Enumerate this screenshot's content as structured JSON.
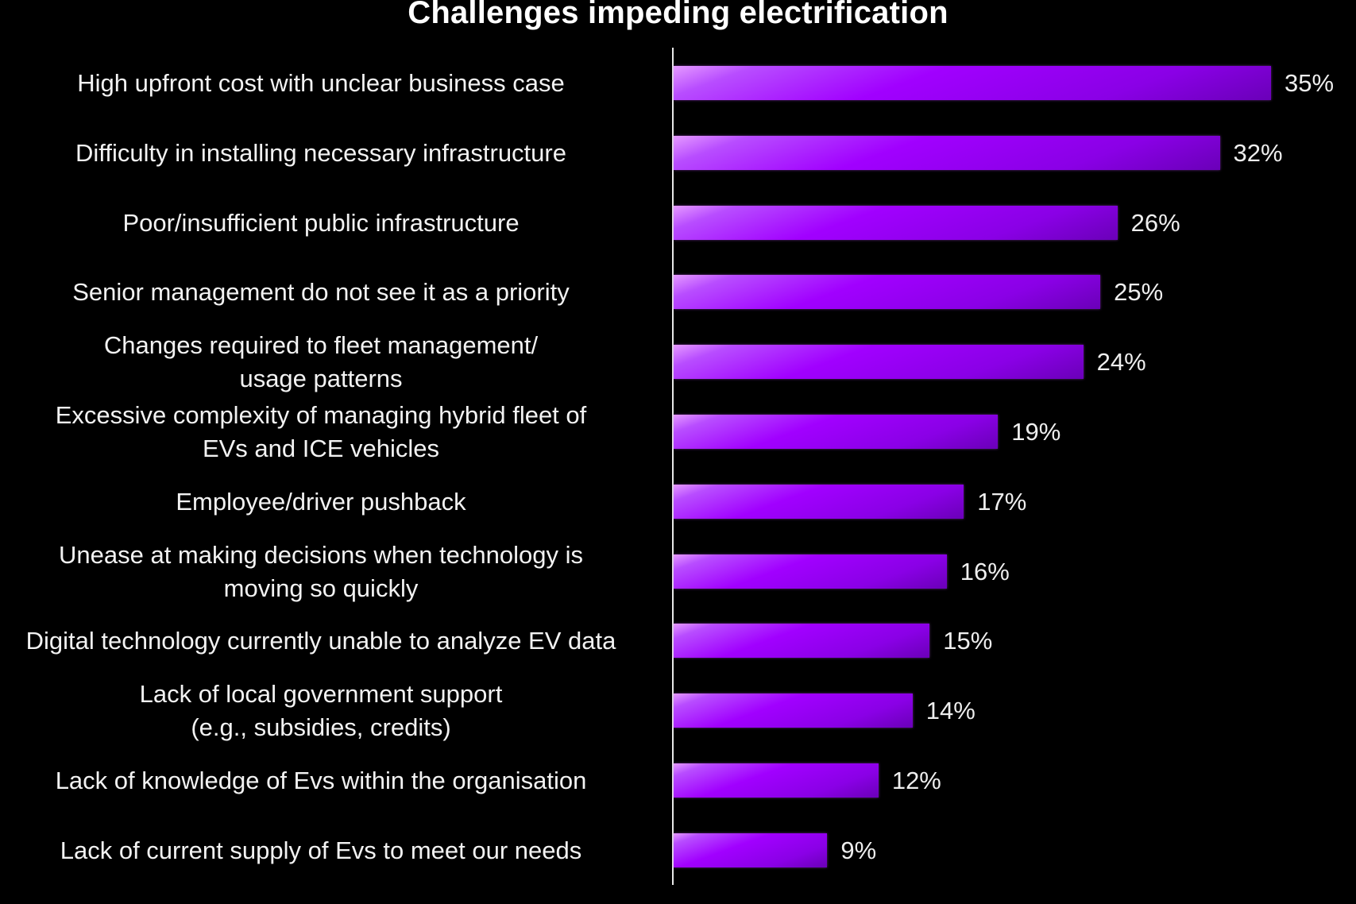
{
  "chart_data": {
    "type": "bar",
    "orientation": "horizontal",
    "title": "Challenges impeding electrification",
    "xlabel": "",
    "ylabel": "",
    "xlim": [
      0,
      35
    ],
    "grid": false,
    "legend": null,
    "bar_color": "#a100ff",
    "categories": [
      "High upfront cost with unclear business case",
      "Difficulty in installing necessary infrastructure",
      "Poor/insufficient public infrastructure",
      "Senior management do not see it as a priority",
      "Changes required to fleet management/ usage patterns",
      "Excessive complexity of managing hybrid fleet of EVs and ICE vehicles",
      "Employee/driver pushback",
      "Unease at making decisions when technology is moving so quickly",
      "Digital technology currently unable to analyze EV data",
      "Lack of local government support (e.g., subsidies, credits)",
      "Lack of knowledge of Evs within the organisation",
      "Lack of current supply of Evs to meet our needs"
    ],
    "values": [
      35,
      32,
      26,
      25,
      24,
      19,
      17,
      16,
      15,
      14,
      12,
      9
    ],
    "value_labels": [
      "35%",
      "32%",
      "26%",
      "25%",
      "24%",
      "19%",
      "17%",
      "16%",
      "15%",
      "14%",
      "12%",
      "9%"
    ]
  },
  "rows": [
    {
      "lines": [
        "High upfront cost with unclear business case"
      ],
      "value": 35,
      "label": "35%"
    },
    {
      "lines": [
        "Difficulty in installing necessary infrastructure"
      ],
      "value": 32,
      "label": "32%"
    },
    {
      "lines": [
        "Poor/insufficient public infrastructure"
      ],
      "value": 26,
      "label": "26%"
    },
    {
      "lines": [
        "Senior management do not see it as a priority"
      ],
      "value": 25,
      "label": "25%"
    },
    {
      "lines": [
        "Changes required to fleet management/",
        "usage patterns"
      ],
      "value": 24,
      "label": "24%"
    },
    {
      "lines": [
        "Excessive complexity of managing hybrid fleet of",
        "EVs and ICE vehicles"
      ],
      "value": 19,
      "label": "19%"
    },
    {
      "lines": [
        "Employee/driver pushback"
      ],
      "value": 17,
      "label": "17%"
    },
    {
      "lines": [
        "Unease at making decisions when technology is",
        "moving so quickly"
      ],
      "value": 16,
      "label": "16%"
    },
    {
      "lines": [
        "Digital technology currently unable to analyze EV data"
      ],
      "value": 15,
      "label": "15%"
    },
    {
      "lines": [
        "Lack of local government support",
        "(e.g., subsidies, credits)"
      ],
      "value": 14,
      "label": "14%"
    },
    {
      "lines": [
        "Lack of knowledge of Evs within the organisation"
      ],
      "value": 12,
      "label": "12%"
    },
    {
      "lines": [
        "Lack of current supply of Evs to meet our needs"
      ],
      "value": 9,
      "label": "9%"
    }
  ]
}
